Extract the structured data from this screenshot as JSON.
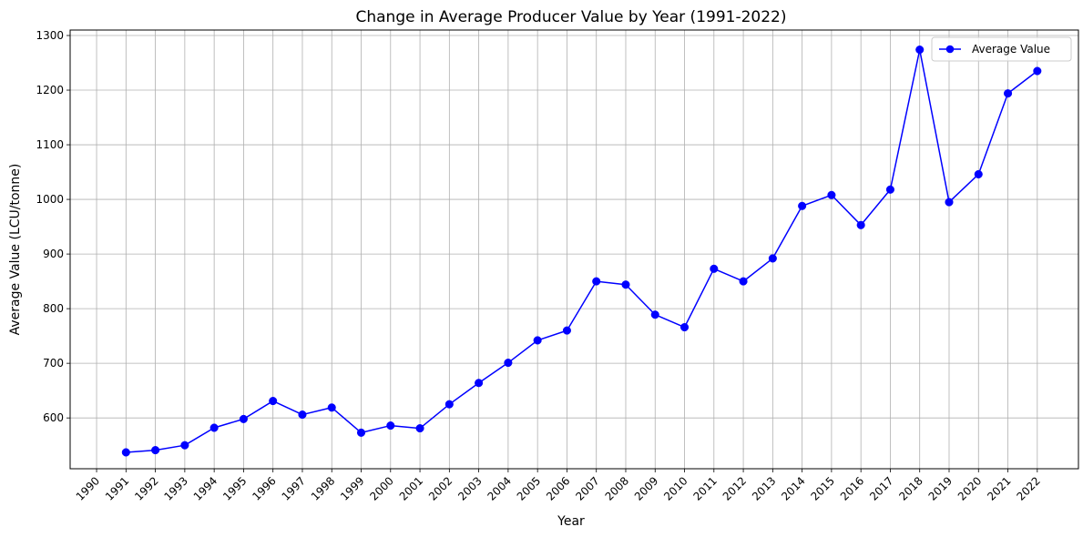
{
  "chart_data": {
    "type": "line",
    "title": "Change in Average Producer Value by Year (1991-2022)",
    "xlabel": "Year",
    "ylabel": "Average Value (LCU/tonne)",
    "x_ticks": [
      "1990",
      "1991",
      "1992",
      "1993",
      "1994",
      "1995",
      "1996",
      "1997",
      "1998",
      "1999",
      "2000",
      "2001",
      "2002",
      "2003",
      "2004",
      "2005",
      "2006",
      "2007",
      "2008",
      "2009",
      "2010",
      "2011",
      "2012",
      "2013",
      "2014",
      "2015",
      "2016",
      "2017",
      "2018",
      "2019",
      "2020",
      "2021",
      "2022"
    ],
    "y_ticks": [
      "600",
      "700",
      "800",
      "900",
      "1000",
      "1100",
      "1200",
      "1300"
    ],
    "xlim": [
      1989.1,
      2023.4
    ],
    "ylim": [
      507,
      1310
    ],
    "grid": true,
    "legend_position": "top-right",
    "colors": {
      "series": "#0000ff",
      "grid": "#b0b0b0"
    },
    "series": [
      {
        "name": "Average Value",
        "x": [
          1991,
          1992,
          1993,
          1994,
          1995,
          1996,
          1997,
          1998,
          1999,
          2000,
          2001,
          2002,
          2003,
          2004,
          2005,
          2006,
          2007,
          2008,
          2009,
          2010,
          2011,
          2012,
          2013,
          2014,
          2015,
          2016,
          2017,
          2018,
          2019,
          2020,
          2021,
          2022
        ],
        "values": [
          537,
          541,
          550,
          582,
          598,
          631,
          606,
          619,
          573,
          586,
          581,
          625,
          664,
          701,
          742,
          760,
          850,
          844,
          789,
          766,
          873,
          850,
          892,
          988,
          1008,
          953,
          1018,
          1274,
          995,
          1046,
          1194,
          1235
        ]
      }
    ]
  }
}
